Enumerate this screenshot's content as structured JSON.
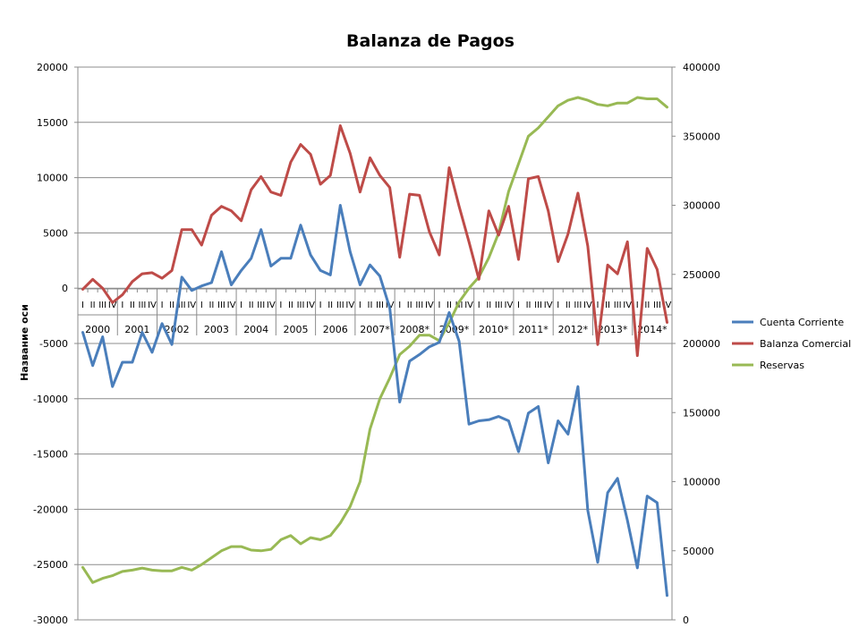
{
  "chart_data": {
    "type": "line",
    "title": "Balanza de Pagos",
    "ylabel": "Название оси",
    "xlabel": "",
    "years": [
      "2000",
      "2001",
      "2002",
      "2003",
      "2004",
      "2005",
      "2006",
      "2007*",
      "2008*",
      "2009*",
      "2010*",
      "2011*",
      "2012*",
      "2013*",
      "2014*"
    ],
    "quarters": [
      "I",
      "II",
      "III",
      "IV"
    ],
    "ylim": [
      -30000,
      20000
    ],
    "yticks": [
      20000,
      15000,
      10000,
      5000,
      0,
      -5000,
      -10000,
      -15000,
      -20000,
      -25000,
      -30000
    ],
    "y2lim": [
      0,
      400000
    ],
    "y2ticks": [
      400000,
      350000,
      300000,
      250000,
      200000,
      150000,
      100000,
      50000,
      0
    ],
    "grid": true,
    "legend_position": "right",
    "series": [
      {
        "name": "Cuenta Corriente",
        "axis": "left",
        "color": "#4a7ebb",
        "values": [
          -4000,
          -7000,
          -4400,
          -8900,
          -6700,
          -6700,
          -4000,
          -5800,
          -3200,
          -5100,
          1000,
          -200,
          200,
          500,
          3300,
          300,
          1600,
          2700,
          5300,
          2000,
          2700,
          2700,
          5700,
          3000,
          1600,
          1200,
          7500,
          3300,
          300,
          2100,
          1100,
          -1800,
          -10300,
          -6600,
          -6000,
          -5300,
          -4900,
          -2200,
          -4800,
          -12300,
          -12000,
          -11900,
          -11600,
          -12000,
          -14800,
          -11300,
          -10700,
          -15800,
          -12000,
          -13200,
          -8900,
          -20100,
          -24800,
          -18500,
          -17200,
          -21000,
          -25300,
          -18800,
          -19400,
          -27800
        ]
      },
      {
        "name": "Balanza Comercial",
        "axis": "left",
        "color": "#be4b48",
        "values": [
          -100,
          800,
          0,
          -1300,
          -600,
          600,
          1300,
          1400,
          900,
          1600,
          5300,
          5300,
          3900,
          6600,
          7400,
          7000,
          6100,
          8900,
          10100,
          8700,
          8400,
          11400,
          13000,
          12100,
          9400,
          10200,
          14700,
          12200,
          8700,
          11800,
          10200,
          9100,
          2800,
          8500,
          8400,
          5100,
          3000,
          10900,
          7400,
          4200,
          800,
          7000,
          4800,
          7400,
          2600,
          9900,
          10100,
          7000,
          2400,
          4900,
          8600,
          3800,
          -5100,
          2100,
          1300,
          4200,
          -6100,
          3600,
          1700,
          -3100
        ]
      },
      {
        "name": "Reservas",
        "axis": "right",
        "color": "#98b954",
        "values": [
          38000,
          27000,
          30000,
          32000,
          35000,
          36000,
          37500,
          36000,
          35500,
          35500,
          38000,
          36000,
          40000,
          45000,
          50000,
          53000,
          53000,
          50500,
          50000,
          51000,
          58000,
          61000,
          55000,
          59500,
          58000,
          61000,
          70000,
          82000,
          100000,
          138000,
          160000,
          175000,
          192000,
          198000,
          206000,
          206000,
          202000,
          215000,
          230000,
          240000,
          248000,
          262000,
          280000,
          310000,
          330000,
          350000,
          356000,
          364000,
          372000,
          376000,
          378000,
          376000,
          373000,
          372000,
          374000,
          374000,
          378000,
          377000,
          377000,
          371000
        ]
      }
    ]
  }
}
